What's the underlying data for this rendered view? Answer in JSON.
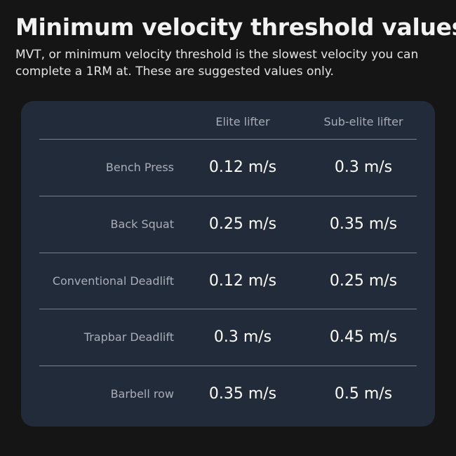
{
  "header": {
    "title": "Minimum velocity threshold values",
    "subtitle": "MVT, or minimum velocity threshold is the slowest velocity you can complete a 1RM at. These are suggested values only."
  },
  "table": {
    "columns": [
      "",
      "Elite lifter",
      "Sub-elite lifter"
    ],
    "rows": [
      {
        "exercise": "Bench Press",
        "elite": "0.12 m/s",
        "sub_elite": "0.3 m/s"
      },
      {
        "exercise": "Back Squat",
        "elite": "0.25 m/s",
        "sub_elite": "0.35 m/s"
      },
      {
        "exercise": "Conventional Deadlift",
        "elite": "0.12 m/s",
        "sub_elite": "0.25 m/s"
      },
      {
        "exercise": "Trapbar Deadlift",
        "elite": "0.3 m/s",
        "sub_elite": "0.45 m/s"
      },
      {
        "exercise": "Barbell row",
        "elite": "0.35 m/s",
        "sub_elite": "0.5 m/s"
      }
    ]
  },
  "colors": {
    "background": "#151515",
    "card": "#222b39",
    "divider": "#78808c",
    "muted_text": "#a9aeb8",
    "value_text": "#ffffff"
  }
}
